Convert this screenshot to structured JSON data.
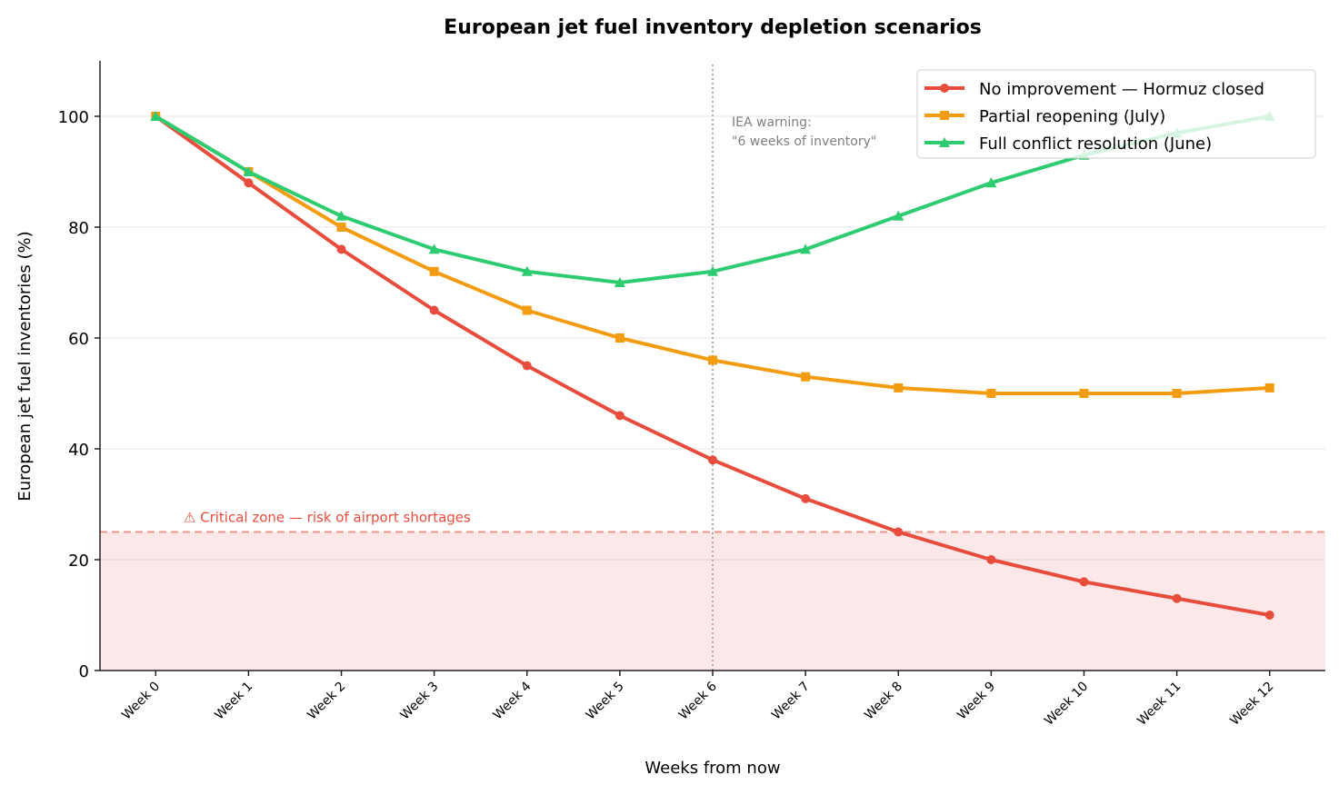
{
  "chart_data": {
    "type": "line",
    "title": "European jet fuel inventory depletion scenarios",
    "xlabel": "Weeks from now",
    "ylabel": "European jet fuel inventories (%)",
    "categories": [
      "Week 0",
      "Week 1",
      "Week 2",
      "Week 3",
      "Week 4",
      "Week 5",
      "Week 6",
      "Week 7",
      "Week 8",
      "Week 9",
      "Week 10",
      "Week 11",
      "Week 12"
    ],
    "ylim": [
      0,
      110
    ],
    "yticks": [
      0,
      20,
      40,
      60,
      80,
      100
    ],
    "grid": "horizontal",
    "legend_position": "top-right",
    "series": [
      {
        "name": "No improvement — Hormuz closed",
        "color": "#e74c3c",
        "marker": "circle",
        "values": [
          100,
          88,
          76,
          65,
          55,
          46,
          38,
          31,
          25,
          20,
          16,
          13,
          10
        ]
      },
      {
        "name": "Partial reopening (July)",
        "color": "#f39c12",
        "marker": "square",
        "values": [
          100,
          90,
          80,
          72,
          65,
          60,
          56,
          53,
          51,
          50,
          50,
          50,
          51
        ]
      },
      {
        "name": "Full conflict resolution (June)",
        "color": "#2ecc71",
        "marker": "triangle",
        "values": [
          100,
          90,
          82,
          76,
          72,
          70,
          72,
          76,
          82,
          88,
          93,
          97,
          100
        ]
      }
    ],
    "critical_zone": {
      "threshold": 25,
      "label": "⚠ Critical zone — risk of airport shortages",
      "color": "#e74c3c"
    },
    "annotation": {
      "week_index": 6,
      "lines": [
        "IEA warning:",
        "\"6 weeks of inventory\""
      ]
    }
  }
}
